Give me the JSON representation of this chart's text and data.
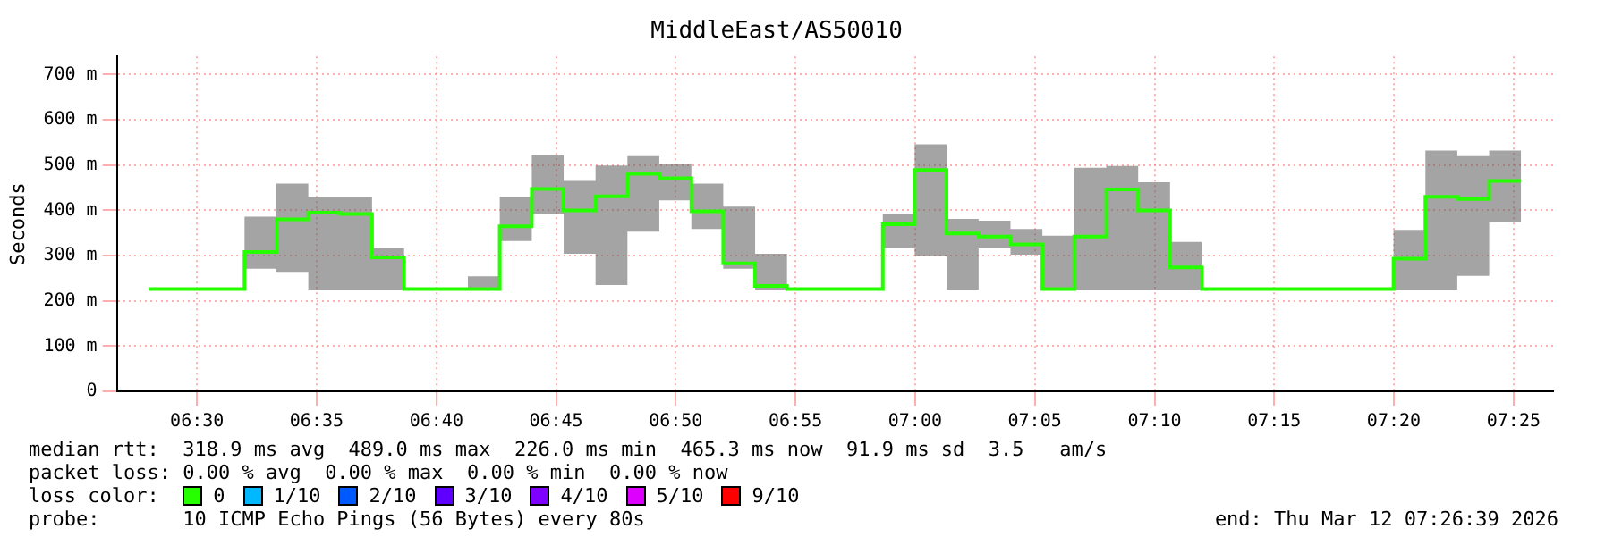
{
  "chart_data": {
    "type": "step",
    "title": "MiddleEast/AS50010",
    "ylabel": "Seconds",
    "legend_title": "loss color:",
    "legend": "bottom",
    "grid": true,
    "marker": "none",
    "line_style": "solid",
    "x": [
      6.4664,
      6.4886,
      6.5108,
      6.5331,
      6.5553,
      6.5775,
      6.5997,
      6.6219,
      6.6442,
      6.6664,
      6.6886,
      6.7108,
      6.7331,
      6.7553,
      6.7775,
      6.7997,
      6.8219,
      6.8442,
      6.8664,
      6.8886,
      6.9108,
      6.9331,
      6.9553,
      6.9775,
      6.9997,
      7.0219,
      7.0442,
      7.0664,
      7.0886,
      7.1108,
      7.1331,
      7.1553,
      7.1775,
      7.1997,
      7.2219,
      7.2442,
      7.2664,
      7.2886,
      7.3108,
      7.3331,
      7.3553,
      7.3775,
      7.3997,
      7.4219
    ],
    "series": [
      {
        "name": "0",
        "color": "#26ff00",
        "values": [
          226,
          226,
          226,
          226,
          308,
          380,
          395,
          392,
          296,
          226,
          226,
          226,
          365,
          447,
          400,
          431,
          481,
          471,
          398,
          283,
          233,
          226,
          226,
          226,
          369,
          489,
          349,
          342,
          325,
          226,
          342,
          446,
          400,
          274,
          226,
          226,
          226,
          226,
          226,
          226,
          293,
          430,
          425,
          465
        ],
        "lower": [
          226,
          226,
          226,
          226,
          271,
          264,
          225,
          225,
          225,
          226,
          226,
          225,
          332,
          393,
          304,
          235,
          353,
          422,
          359,
          271,
          225,
          226,
          226,
          226,
          316,
          298,
          225,
          316,
          302,
          225,
          225,
          225,
          225,
          225,
          226,
          226,
          226,
          226,
          226,
          226,
          225,
          225,
          255,
          374
        ],
        "upper": [
          226,
          226,
          226,
          226,
          386,
          459,
          429,
          429,
          316,
          226,
          226,
          254,
          430,
          521,
          465,
          499,
          520,
          502,
          459,
          408,
          304,
          226,
          226,
          226,
          393,
          546,
          381,
          377,
          359,
          344,
          494,
          498,
          462,
          330,
          226,
          226,
          226,
          226,
          226,
          226,
          357,
          532,
          520,
          532
        ]
      },
      {
        "name": "1/10",
        "color": "#00b8ff",
        "values": [
          null,
          null,
          null,
          null,
          null,
          null,
          null,
          null,
          null,
          null,
          null,
          null,
          null,
          null,
          null,
          null,
          null,
          null,
          null,
          null,
          null,
          null,
          null,
          null,
          null,
          null,
          null,
          null,
          null,
          null,
          null,
          null,
          null,
          null,
          null,
          null,
          null,
          null,
          null,
          null,
          null,
          null,
          null,
          null
        ]
      },
      {
        "name": "2/10",
        "color": "#0059ff",
        "values": [
          null,
          null,
          null,
          null,
          null,
          null,
          null,
          null,
          null,
          null,
          null,
          null,
          null,
          null,
          null,
          null,
          null,
          null,
          null,
          null,
          null,
          null,
          null,
          null,
          null,
          null,
          null,
          null,
          null,
          null,
          null,
          null,
          null,
          null,
          null,
          null,
          null,
          null,
          null,
          null,
          null,
          null,
          null,
          null
        ]
      },
      {
        "name": "3/10",
        "color": "#5e00ff",
        "values": [
          null,
          null,
          null,
          null,
          null,
          null,
          null,
          null,
          null,
          null,
          null,
          null,
          null,
          null,
          null,
          null,
          null,
          null,
          null,
          null,
          null,
          null,
          null,
          null,
          null,
          null,
          null,
          null,
          null,
          null,
          null,
          null,
          null,
          null,
          null,
          null,
          null,
          null,
          null,
          null,
          null,
          null,
          null,
          null
        ]
      },
      {
        "name": "4/10",
        "color": "#7e00ff",
        "values": [
          null,
          null,
          null,
          null,
          null,
          null,
          null,
          null,
          null,
          null,
          null,
          null,
          null,
          null,
          null,
          null,
          null,
          null,
          null,
          null,
          null,
          null,
          null,
          null,
          null,
          null,
          null,
          null,
          null,
          null,
          null,
          null,
          null,
          null,
          null,
          null,
          null,
          null,
          null,
          null,
          null,
          null,
          null,
          null
        ]
      },
      {
        "name": "5/10",
        "color": "#dd00ff",
        "values": [
          null,
          null,
          null,
          null,
          null,
          null,
          null,
          null,
          null,
          null,
          null,
          null,
          null,
          null,
          null,
          null,
          null,
          null,
          null,
          null,
          null,
          null,
          null,
          null,
          null,
          null,
          null,
          null,
          null,
          null,
          null,
          null,
          null,
          null,
          null,
          null,
          null,
          null,
          null,
          null,
          null,
          null,
          null,
          null
        ]
      },
      {
        "name": "9/10",
        "color": "#ff0000",
        "values": [
          null,
          null,
          null,
          null,
          null,
          null,
          null,
          null,
          null,
          null,
          null,
          null,
          null,
          null,
          null,
          null,
          null,
          null,
          null,
          null,
          null,
          null,
          null,
          null,
          null,
          null,
          null,
          null,
          null,
          null,
          null,
          null,
          null,
          null,
          null,
          null,
          null,
          null,
          null,
          null,
          null,
          null,
          null,
          null
        ]
      }
    ],
    "xlim": [
      6.4442,
      7.4442
    ],
    "xticks": [
      {
        "value": 6.5,
        "label": "06:30"
      },
      {
        "value": 6.5833,
        "label": "06:35"
      },
      {
        "value": 6.6667,
        "label": "06:40"
      },
      {
        "value": 6.75,
        "label": "06:45"
      },
      {
        "value": 6.8333,
        "label": "06:50"
      },
      {
        "value": 6.9167,
        "label": "06:55"
      },
      {
        "value": 7,
        "label": "07:00"
      },
      {
        "value": 7.0833,
        "label": "07:05"
      },
      {
        "value": 7.1667,
        "label": "07:10"
      },
      {
        "value": 7.25,
        "label": "07:15"
      },
      {
        "value": 7.3333,
        "label": "07:20"
      },
      {
        "value": 7.4167,
        "label": "07:25"
      }
    ],
    "ylim": [
      0,
      740
    ],
    "yticks": [
      0,
      {
        "value": 100,
        "label": "100 m"
      },
      {
        "value": 200,
        "label": "200 m"
      },
      {
        "value": 300,
        "label": "300 m"
      },
      {
        "value": 400,
        "label": "400 m"
      },
      {
        "value": 500,
        "label": "500 m"
      },
      {
        "value": 600,
        "label": "600 m"
      },
      {
        "value": 700,
        "label": "700 m"
      }
    ],
    "annotations": [
      "median rtt:  318.9 ms avg  489.0 ms max  226.0 ms min  465.3 ms now  91.9 ms sd  3.5   am/s",
      "packet loss: 0.00 % avg  0.00 % max  0.00 % min  0.00 % now",
      "probe:       10 ICMP Echo Pings (56 Bytes) every 80s",
      "end: Thu Mar 12 07:26:39 2026"
    ]
  }
}
